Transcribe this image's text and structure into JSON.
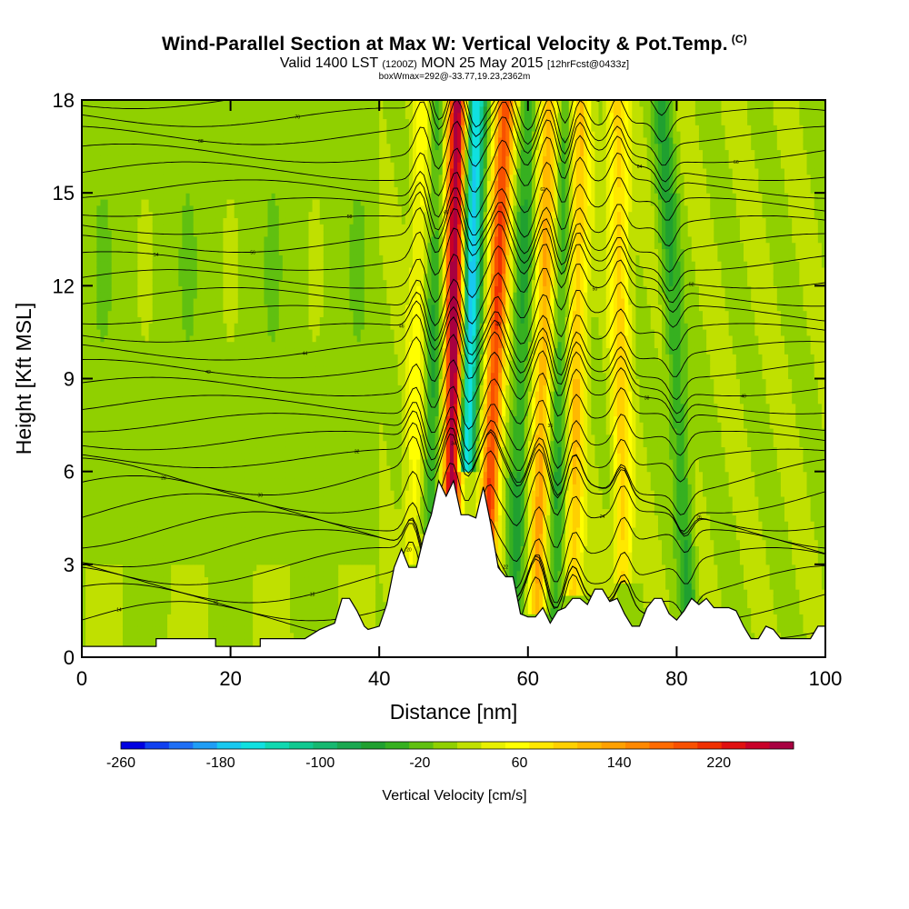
{
  "header": {
    "title": "Wind-Parallel Section at Max W: Vertical Velocity & Pot.Temp.",
    "title_mark": "(C)",
    "valid_prefix": "Valid 1400 LST",
    "valid_utc": "(1200Z)",
    "valid_date": "MON 25 May 2015",
    "forecast_info": "[12hrFcst@0433z]",
    "box_info": "boxWmax=292@-33.77,19.23,2362m"
  },
  "chart_data": {
    "type": "heatmap",
    "xlabel": "Distance [nm]",
    "ylabel": "Height [Kft MSL]",
    "xlim": [
      0,
      100
    ],
    "ylim": [
      0,
      18
    ],
    "x_ticks": [
      0,
      20,
      40,
      60,
      80,
      100
    ],
    "y_ticks": [
      0,
      3,
      6,
      9,
      12,
      15,
      18
    ],
    "terrain": {
      "x": [
        0,
        10,
        10,
        18,
        18,
        24,
        24,
        30,
        32,
        34,
        35,
        36,
        37,
        38,
        38.5,
        40,
        41,
        42,
        43,
        44,
        45,
        46,
        47,
        48,
        49,
        50,
        51,
        52,
        53,
        54,
        55,
        56,
        57,
        58,
        59,
        60,
        61,
        62,
        63,
        64,
        65,
        66,
        67,
        68,
        69,
        70,
        71,
        72,
        73,
        74,
        75,
        76,
        77,
        78,
        79,
        80,
        81,
        82,
        83,
        84,
        85,
        86,
        87,
        88,
        89,
        90,
        91,
        92,
        93,
        94,
        95,
        96,
        97,
        98,
        99,
        100
      ],
      "height": [
        0.35,
        0.35,
        0.6,
        0.6,
        0.35,
        0.35,
        0.6,
        0.6,
        0.9,
        1.1,
        1.9,
        1.9,
        1.5,
        1.0,
        0.9,
        1.0,
        1.7,
        2.9,
        3.5,
        2.9,
        2.9,
        3.9,
        4.6,
        5.7,
        5.2,
        5.7,
        4.6,
        4.6,
        4.5,
        5.5,
        4.3,
        2.9,
        2.6,
        2.6,
        1.4,
        1.3,
        1.3,
        1.6,
        1.1,
        1.5,
        1.6,
        1.9,
        1.9,
        1.7,
        2.2,
        2.2,
        1.8,
        1.9,
        1.4,
        1.0,
        1.0,
        1.6,
        1.9,
        1.9,
        1.4,
        1.2,
        1.5,
        1.9,
        1.7,
        1.9,
        1.6,
        1.6,
        1.6,
        1.5,
        1.0,
        0.6,
        0.6,
        1.0,
        0.9,
        0.6,
        0.6,
        0.6,
        0.6,
        0.6,
        1.0,
        1.0
      ]
    },
    "vertical_velocity_features": [
      {
        "kind": "updraft",
        "x_base": 49.5,
        "x_top": 50.5,
        "z_bottom": 4.6,
        "z_top": 18,
        "max_cm_s": 292
      },
      {
        "kind": "downdraft",
        "x_base": 51,
        "x_top": 53,
        "z_bottom": 6,
        "z_top": 18,
        "min_cm_s": -200
      },
      {
        "kind": "updraft",
        "x_base": 54,
        "x_top": 57,
        "z_bottom": 1.5,
        "z_top": 18,
        "max_cm_s": 200
      },
      {
        "kind": "downdraft",
        "x_base": 58,
        "x_top": 60,
        "z_bottom": 0.8,
        "z_top": 18,
        "min_cm_s": -60
      },
      {
        "kind": "updraft",
        "x_base": 61,
        "x_top": 63,
        "z_bottom": 1.5,
        "z_top": 18,
        "max_cm_s": 120
      },
      {
        "kind": "downdraft",
        "x_base": 63.5,
        "x_top": 65,
        "z_bottom": 1.0,
        "z_top": 18,
        "min_cm_s": -60
      },
      {
        "kind": "updraft",
        "x_base": 66,
        "x_top": 67,
        "z_bottom": 2.0,
        "z_top": 18,
        "max_cm_s": 100
      },
      {
        "kind": "updraft",
        "x_base": 73,
        "x_top": 72,
        "z_bottom": 2.5,
        "z_top": 18,
        "max_cm_s": 90
      },
      {
        "kind": "downdraft",
        "x_base": 82,
        "x_top": 78,
        "z_bottom": 1.2,
        "z_top": 18,
        "min_cm_s": -60
      },
      {
        "kind": "updraft",
        "x_base": 44,
        "x_top": 46,
        "z_bottom": 3.0,
        "z_top": 18,
        "max_cm_s": 50
      },
      {
        "kind": "downdraft",
        "x_base": 46.5,
        "x_top": 48,
        "z_bottom": 4.0,
        "z_top": 18,
        "min_cm_s": -60
      }
    ],
    "potential_temperature_contours_C": [
      14,
      16,
      18,
      20,
      22,
      24,
      26,
      28,
      30,
      32,
      34,
      36,
      38,
      40,
      42,
      44,
      46,
      48,
      50,
      52,
      54,
      56,
      58,
      60,
      62,
      64,
      66,
      68,
      70,
      72
    ]
  },
  "colorbar": {
    "title": "Vertical Velocity [cm/s]",
    "range": [
      -260,
      280
    ],
    "step": 20,
    "tick_labels": [
      "-260",
      "-180",
      "-100",
      "-20",
      "60",
      "140",
      "220"
    ],
    "colors": [
      "#0000e0",
      "#1040f0",
      "#1e6ff5",
      "#1f9df5",
      "#18c8f0",
      "#10e0e0",
      "#10d8b0",
      "#10c890",
      "#16b870",
      "#1aa850",
      "#20a030",
      "#36b020",
      "#60c010",
      "#90d000",
      "#c0e000",
      "#e8f000",
      "#ffff00",
      "#ffe800",
      "#ffd000",
      "#ffb800",
      "#ffa000",
      "#ff8800",
      "#ff6a00",
      "#f85000",
      "#f03000",
      "#e01010",
      "#c80028",
      "#a80040"
    ]
  }
}
